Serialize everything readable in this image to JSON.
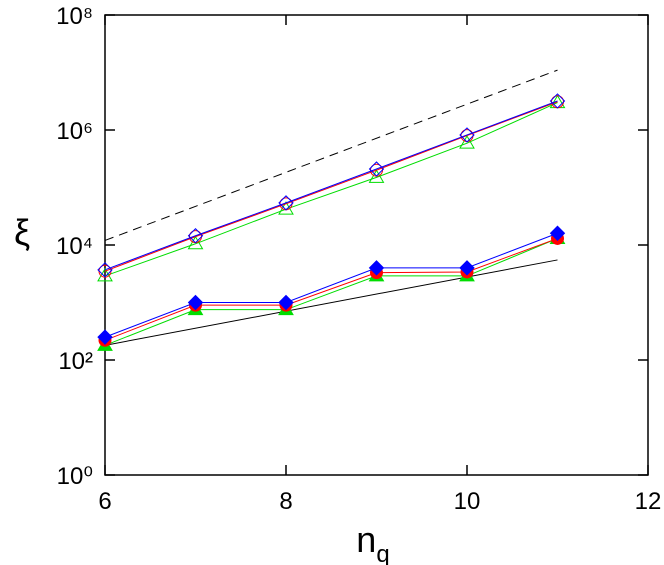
{
  "chart_data": {
    "type": "line",
    "log_y": true,
    "xlabel": "n",
    "xlabel_sub": "q",
    "ylabel": "ξ",
    "xlim": [
      6,
      12
    ],
    "xticks": [
      6,
      8,
      10,
      12
    ],
    "ylim": [
      1,
      100000000
    ],
    "yticks": [
      {
        "value": 1,
        "label": "10⁰"
      },
      {
        "value": 100,
        "label": "10²"
      },
      {
        "value": 10000,
        "label": "10⁴"
      },
      {
        "value": 1000000,
        "label": "10⁶"
      },
      {
        "value": 100000000,
        "label": "10⁸"
      }
    ],
    "series": [
      {
        "color": "#000000",
        "dash": true,
        "marker": "none",
        "x": [
          6,
          11
        ],
        "values": [
          12000,
          11000000
        ]
      },
      {
        "color": "#000000",
        "dash": false,
        "marker": "none",
        "x": [
          6,
          11
        ],
        "values": [
          180,
          5500
        ]
      },
      {
        "color": "#00dd00",
        "marker": "triangle",
        "filled": false,
        "x": [
          6,
          7,
          8,
          9,
          10,
          11
        ],
        "values": [
          2900,
          10500,
          42000,
          150000,
          590000,
          3000000
        ]
      },
      {
        "color": "#ff0000",
        "marker": "circle",
        "filled": false,
        "x": [
          6,
          7,
          8,
          9,
          10,
          11
        ],
        "values": [
          3500,
          14000,
          52000,
          200000,
          800000,
          3100000
        ]
      },
      {
        "color": "#0000ff",
        "marker": "diamond",
        "filled": false,
        "x": [
          6,
          7,
          8,
          9,
          10,
          11
        ],
        "values": [
          3700,
          14500,
          54000,
          210000,
          820000,
          3200000
        ]
      },
      {
        "color": "#00dd00",
        "marker": "triangle",
        "filled": true,
        "x": [
          6,
          7,
          8,
          9,
          10,
          11
        ],
        "values": [
          180,
          750,
          750,
          2900,
          2900,
          13000
        ]
      },
      {
        "color": "#ff0000",
        "marker": "circle",
        "filled": true,
        "x": [
          6,
          7,
          8,
          9,
          10,
          11
        ],
        "values": [
          220,
          900,
          900,
          3300,
          3400,
          13000
        ]
      },
      {
        "color": "#0000ff",
        "marker": "diamond",
        "filled": true,
        "x": [
          6,
          7,
          8,
          9,
          10,
          11
        ],
        "values": [
          250,
          1000,
          1000,
          4000,
          4000,
          16000
        ]
      }
    ]
  }
}
